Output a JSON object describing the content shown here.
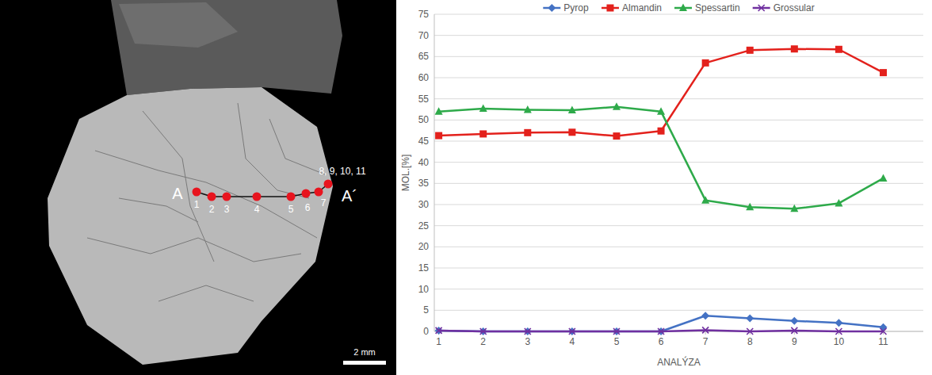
{
  "chart_data": {
    "type": "line",
    "x_label": "ANALÝZA",
    "y_label": "MOL.[%]",
    "categories": [
      "1",
      "2",
      "3",
      "4",
      "5",
      "6",
      "7",
      "8",
      "9",
      "10",
      "11"
    ],
    "series": [
      {
        "name": "Pyrop",
        "color": "#4472c4",
        "marker": "diamond",
        "values": [
          0.2,
          0,
          0,
          0,
          0,
          0,
          3.7,
          3.1,
          2.5,
          2.0,
          1.0
        ]
      },
      {
        "name": "Almandin",
        "color": "#e3211c",
        "marker": "square",
        "values": [
          46.3,
          46.7,
          47.0,
          47.1,
          46.2,
          47.4,
          63.5,
          66.5,
          66.8,
          66.7,
          61.2
        ]
      },
      {
        "name": "Spessartin",
        "color": "#2eaa4a",
        "marker": "triangle",
        "values": [
          52.0,
          52.7,
          52.4,
          52.3,
          53.1,
          52.0,
          31.0,
          29.4,
          29.0,
          30.3,
          36.2
        ]
      },
      {
        "name": "Grossular",
        "color": "#7030a0",
        "marker": "x",
        "values": [
          0.2,
          0,
          0,
          0,
          0,
          0,
          0.3,
          0,
          0.2,
          0,
          0
        ]
      }
    ],
    "ylim": [
      0,
      75
    ],
    "yticks": [
      0,
      5,
      10,
      15,
      20,
      25,
      30,
      35,
      40,
      45,
      50,
      55,
      60,
      65,
      70,
      75
    ],
    "grid": true,
    "legend": "top"
  },
  "image_panel": {
    "start_label": "A",
    "end_label": "A´",
    "points": [
      "1",
      "2",
      "3",
      "4",
      "5",
      "6",
      "7",
      "8, 9, 10, 11"
    ],
    "scale_bar": "2 mm"
  }
}
